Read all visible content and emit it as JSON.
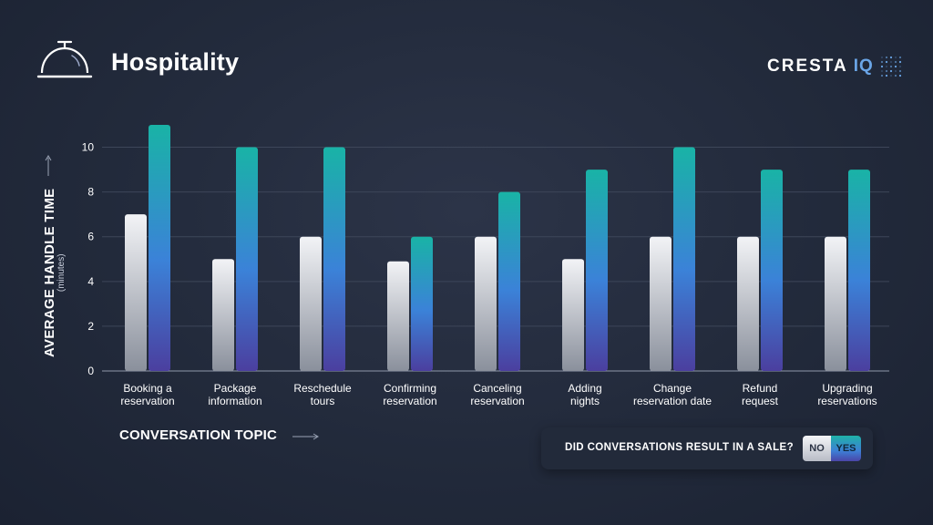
{
  "header": {
    "title": "Hospitality",
    "logo_text": "CRESTA",
    "logo_accent": "IQ",
    "icon": "service-bell-icon"
  },
  "axes": {
    "ylabel": "AVERAGE HANDLE TIME",
    "yunit": "(minutes)",
    "xlabel": "CONVERSATION TOPIC"
  },
  "legend": {
    "question": "DID CONVERSATIONS RESULT IN A SALE?",
    "no_label": "NO",
    "yes_label": "YES"
  },
  "colors": {
    "no_top": "#f2f3f6",
    "no_bottom": "#8a909c",
    "yes_top": "#19b3a6",
    "yes_mid": "#3b82d8",
    "yes_bottom": "#4b3f9f",
    "grid": "#3d4659"
  },
  "chart_data": {
    "type": "bar",
    "categories": [
      [
        "Booking a",
        "reservation"
      ],
      [
        "Package",
        "information"
      ],
      [
        "Reschedule",
        "tours"
      ],
      [
        "Confirming",
        "reservation"
      ],
      [
        "Canceling",
        "reservation"
      ],
      [
        "Adding",
        "nights"
      ],
      [
        "Change",
        "reservation date"
      ],
      [
        "Refund",
        "request"
      ],
      [
        "Upgrading",
        "reservations"
      ]
    ],
    "series": [
      {
        "name": "NO",
        "values": [
          7,
          5,
          6,
          4.9,
          6,
          5,
          6,
          6,
          6
        ]
      },
      {
        "name": "YES",
        "values": [
          11,
          10,
          10,
          6,
          8,
          9,
          10,
          9,
          9
        ]
      }
    ],
    "ylim": [
      0,
      11
    ],
    "yticks": [
      0,
      2,
      4,
      6,
      8,
      10
    ],
    "grid": true,
    "legend_position": "bottom-right"
  }
}
